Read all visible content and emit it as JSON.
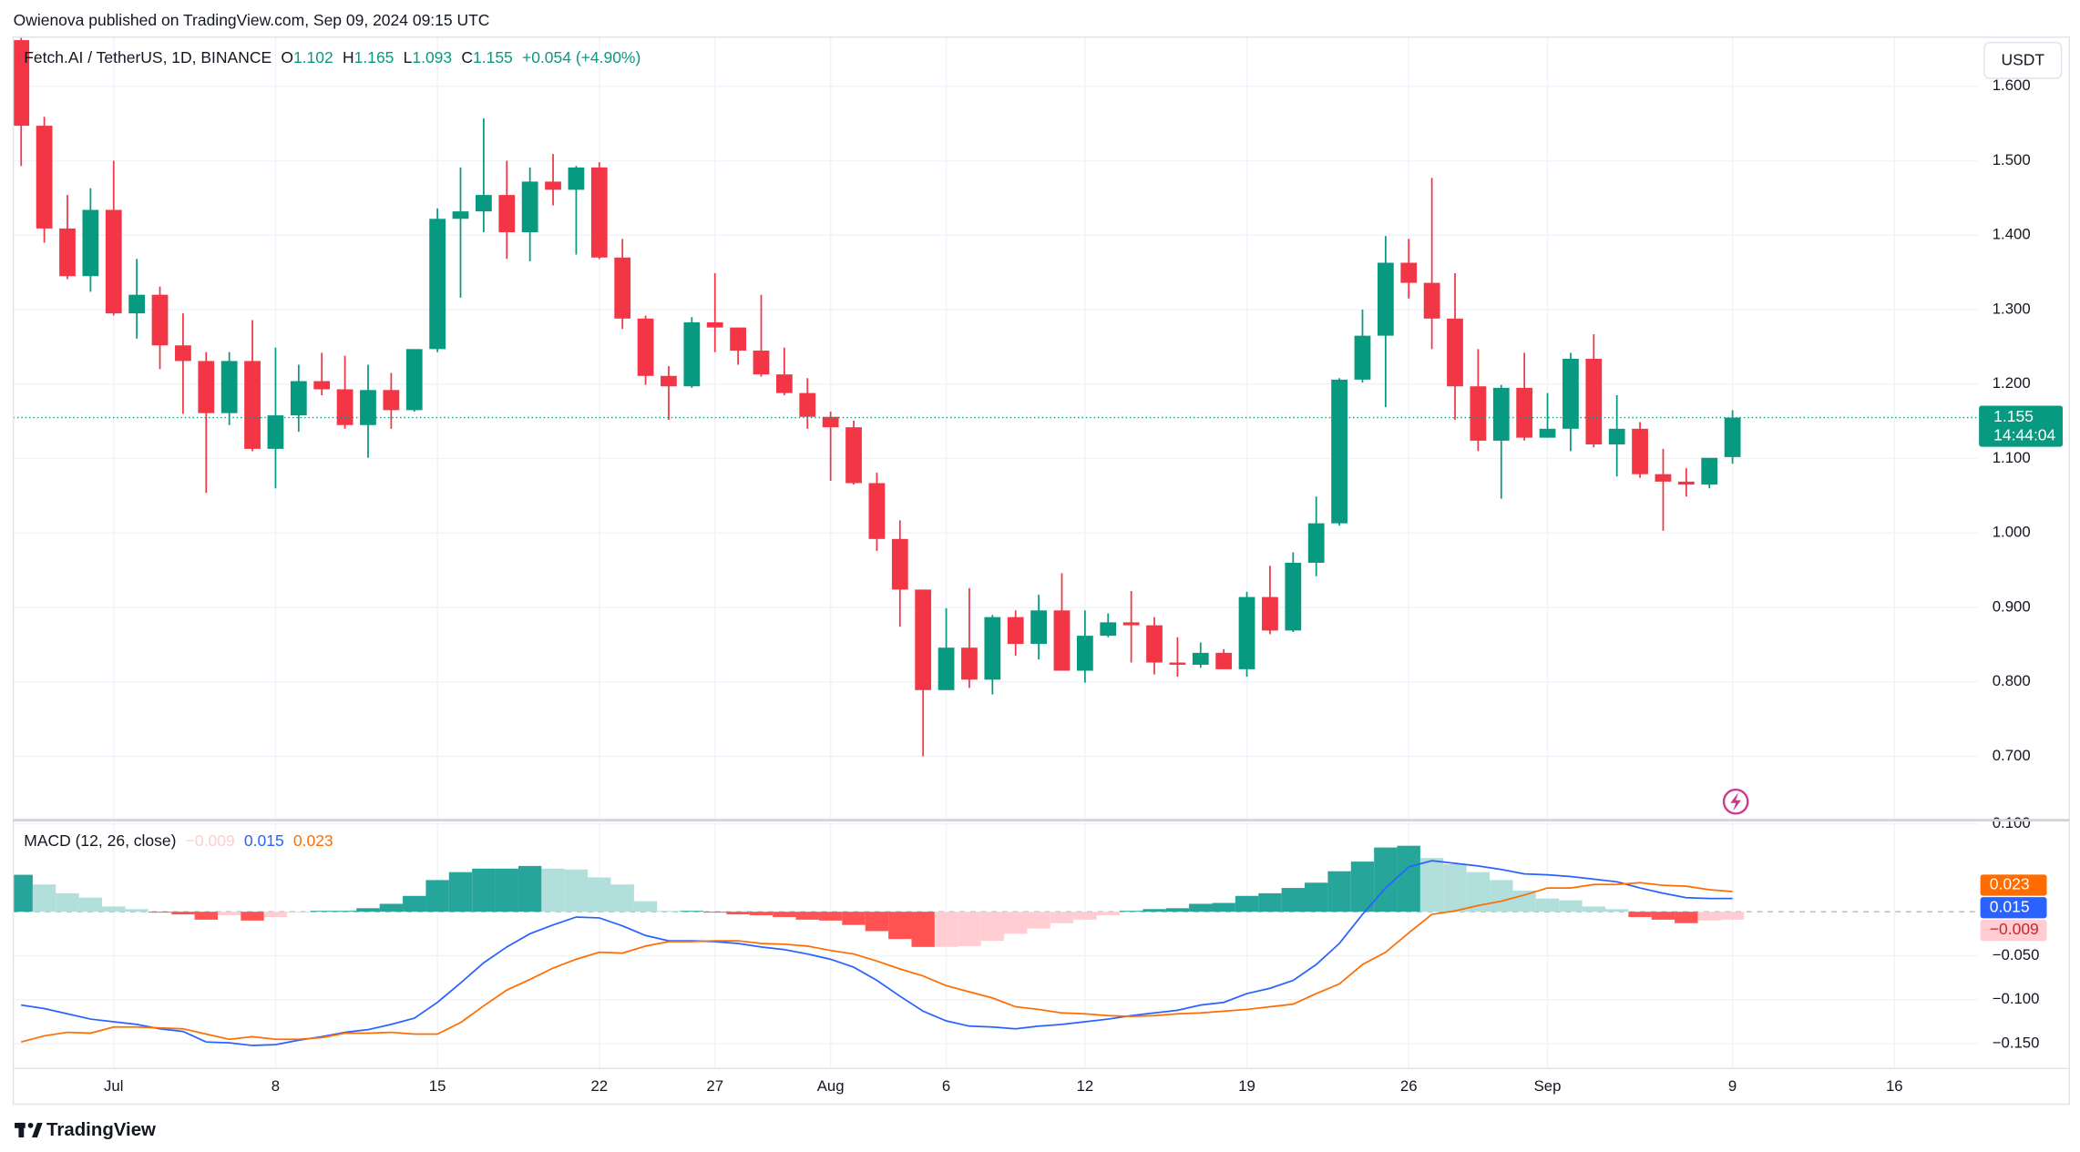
{
  "header": {
    "publisher": "Owienova published on TradingView.com, Sep 09, 2024 09:15 UTC"
  },
  "footer": {
    "brand": "TradingView"
  },
  "chart_data": {
    "type": "candlestick",
    "symbol": "Fetch.AI / TetherUS, 1D, BINANCE",
    "ohlc_legend": [
      {
        "key": "O",
        "value": "1.102"
      },
      {
        "key": "H",
        "value": "1.165"
      },
      {
        "key": "L",
        "value": "1.093"
      },
      {
        "key": "C",
        "value": "1.155"
      }
    ],
    "change": "+0.054 (+4.90%)",
    "currency": "USDT",
    "up_color": "#089981",
    "down_color": "#f23645",
    "open": [
      1.662,
      1.547,
      1.409,
      1.345,
      1.434,
      1.295,
      1.32,
      1.252,
      1.231,
      1.161,
      1.231,
      1.113,
      1.158,
      1.204,
      1.193,
      1.145,
      1.192,
      1.165,
      1.247,
      1.422,
      1.432,
      1.454,
      1.404,
      1.472,
      1.461,
      1.491,
      1.37,
      1.288,
      1.211,
      1.197,
      1.283,
      1.276,
      1.245,
      1.213,
      1.188,
      1.156,
      1.142,
      1.067,
      0.992,
      0.924,
      0.789,
      0.846,
      0.803,
      0.887,
      0.851,
      0.896,
      0.815,
      0.862,
      0.88,
      0.876,
      0.826,
      0.823,
      0.839,
      0.817,
      0.914,
      0.869,
      0.96,
      1.013,
      1.206,
      1.265,
      1.363,
      1.336,
      1.288,
      1.197,
      1.124,
      1.195,
      1.128,
      1.14,
      1.234,
      1.119,
      1.14,
      1.079,
      1.069,
      1.065,
      1.102
    ],
    "high": [
      1.665,
      1.559,
      1.454,
      1.463,
      1.5,
      1.368,
      1.331,
      1.295,
      1.243,
      1.243,
      1.286,
      1.249,
      1.226,
      1.242,
      1.238,
      1.226,
      1.215,
      1.247,
      1.436,
      1.491,
      1.557,
      1.5,
      1.491,
      1.509,
      1.493,
      1.498,
      1.395,
      1.292,
      1.224,
      1.29,
      1.349,
      1.276,
      1.32,
      1.249,
      1.208,
      1.163,
      1.151,
      1.081,
      1.017,
      0.924,
      0.899,
      0.926,
      0.89,
      0.896,
      0.917,
      0.946,
      0.896,
      0.892,
      0.922,
      0.887,
      0.86,
      0.853,
      0.844,
      0.921,
      0.956,
      0.974,
      1.049,
      1.208,
      1.3,
      1.399,
      1.395,
      1.477,
      1.349,
      1.247,
      1.199,
      1.242,
      1.188,
      1.242,
      1.267,
      1.185,
      1.149,
      1.113,
      1.087,
      1.1,
      1.165
    ],
    "low": [
      1.493,
      1.39,
      1.341,
      1.324,
      1.292,
      1.261,
      1.22,
      1.16,
      1.054,
      1.145,
      1.11,
      1.06,
      1.136,
      1.185,
      1.14,
      1.101,
      1.14,
      1.163,
      1.243,
      1.316,
      1.404,
      1.368,
      1.365,
      1.44,
      1.374,
      1.368,
      1.274,
      1.199,
      1.152,
      1.195,
      1.243,
      1.226,
      1.21,
      1.185,
      1.14,
      1.07,
      1.065,
      0.976,
      0.874,
      0.7,
      0.789,
      0.792,
      0.783,
      0.835,
      0.83,
      0.815,
      0.799,
      0.86,
      0.826,
      0.81,
      0.807,
      0.819,
      0.817,
      0.807,
      0.864,
      0.867,
      0.942,
      1.01,
      1.202,
      1.169,
      1.315,
      1.247,
      1.152,
      1.11,
      1.046,
      1.124,
      1.128,
      1.11,
      1.115,
      1.076,
      1.074,
      1.003,
      1.049,
      1.06,
      1.093
    ],
    "close": [
      1.547,
      1.409,
      1.345,
      1.434,
      1.295,
      1.32,
      1.252,
      1.231,
      1.161,
      1.231,
      1.113,
      1.158,
      1.204,
      1.193,
      1.145,
      1.192,
      1.165,
      1.247,
      1.422,
      1.432,
      1.454,
      1.404,
      1.472,
      1.461,
      1.491,
      1.37,
      1.288,
      1.211,
      1.197,
      1.283,
      1.276,
      1.245,
      1.213,
      1.188,
      1.156,
      1.142,
      1.067,
      0.992,
      0.924,
      0.789,
      0.846,
      0.803,
      0.887,
      0.851,
      0.896,
      0.815,
      0.862,
      0.88,
      0.876,
      0.826,
      0.823,
      0.839,
      0.817,
      0.914,
      0.869,
      0.96,
      1.013,
      1.206,
      1.265,
      1.363,
      1.336,
      1.288,
      1.197,
      1.124,
      1.195,
      1.128,
      1.14,
      1.234,
      1.119,
      1.14,
      1.079,
      1.069,
      1.065,
      1.101,
      1.155
    ],
    "xlim": [
      -0.34,
      84.6
    ],
    "xticks": [
      {
        "value": 4,
        "label": "Jul"
      },
      {
        "value": 11,
        "label": "8"
      },
      {
        "value": 18,
        "label": "15"
      },
      {
        "value": 25,
        "label": "22"
      },
      {
        "value": 30,
        "label": "27"
      },
      {
        "value": 35,
        "label": "Aug"
      },
      {
        "value": 40,
        "label": "6"
      },
      {
        "value": 46,
        "label": "12"
      },
      {
        "value": 53,
        "label": "19"
      },
      {
        "value": 60,
        "label": "26"
      },
      {
        "value": 66,
        "label": "Sep"
      },
      {
        "value": 74,
        "label": "9"
      },
      {
        "value": 81,
        "label": "16"
      }
    ],
    "ylim": [
      0.616,
      1.666
    ],
    "yticks": [
      {
        "value": 0.7,
        "label": "0.700"
      },
      {
        "value": 0.8,
        "label": "0.800"
      },
      {
        "value": 0.9,
        "label": "0.900"
      },
      {
        "value": 1.0,
        "label": "1.000"
      },
      {
        "value": 1.1,
        "label": "1.100"
      },
      {
        "value": 1.2,
        "label": "1.200"
      },
      {
        "value": 1.3,
        "label": "1.300"
      },
      {
        "value": 1.4,
        "label": "1.400"
      },
      {
        "value": 1.5,
        "label": "1.500"
      },
      {
        "value": 1.6,
        "label": "1.600"
      }
    ],
    "grid": true,
    "last_price": {
      "value": 1.155,
      "label": "1.155",
      "countdown": "14:44:04"
    },
    "macd": {
      "title": "MACD (12, 26, close)",
      "legend": {
        "histogram": "−0.009",
        "macd": "0.015",
        "signal": "0.023"
      },
      "macd_color": "#2962ff",
      "signal_color": "#ff6d00",
      "histogram_colors": [
        "#26a69a",
        "#b2dfdb",
        "#ffcdd2",
        "#ff5252"
      ],
      "histogram": [
        0.042,
        0.031,
        0.021,
        0.016,
        0.006,
        0.003,
        -0.001,
        -0.003,
        -0.009,
        -0.004,
        -0.01,
        -0.006,
        -0.001,
        0.001,
        0.001,
        0.004,
        0.009,
        0.018,
        0.036,
        0.045,
        0.049,
        0.049,
        0.052,
        0.049,
        0.048,
        0.039,
        0.031,
        0.012,
        0.001,
        0.001,
        -0.001,
        -0.003,
        -0.004,
        -0.006,
        -0.009,
        -0.01,
        -0.015,
        -0.022,
        -0.031,
        -0.04,
        -0.04,
        -0.039,
        -0.033,
        -0.025,
        -0.019,
        -0.013,
        -0.009,
        -0.004,
        0.001,
        0.003,
        0.004,
        0.009,
        0.01,
        0.018,
        0.021,
        0.027,
        0.033,
        0.046,
        0.057,
        0.073,
        0.075,
        0.061,
        0.054,
        0.045,
        0.036,
        0.024,
        0.015,
        0.013,
        0.006,
        0.003,
        -0.006,
        -0.009,
        -0.013,
        -0.01,
        -0.009
      ],
      "macd": [
        -0.106,
        -0.11,
        -0.116,
        -0.122,
        -0.125,
        -0.128,
        -0.133,
        -0.136,
        -0.148,
        -0.149,
        -0.152,
        -0.151,
        -0.146,
        -0.142,
        -0.137,
        -0.134,
        -0.128,
        -0.121,
        -0.103,
        -0.081,
        -0.058,
        -0.04,
        -0.025,
        -0.015,
        -0.006,
        -0.007,
        -0.016,
        -0.027,
        -0.033,
        -0.033,
        -0.034,
        -0.036,
        -0.04,
        -0.043,
        -0.048,
        -0.054,
        -0.063,
        -0.078,
        -0.096,
        -0.113,
        -0.124,
        -0.13,
        -0.131,
        -0.133,
        -0.13,
        -0.128,
        -0.125,
        -0.122,
        -0.118,
        -0.115,
        -0.112,
        -0.106,
        -0.103,
        -0.093,
        -0.087,
        -0.078,
        -0.06,
        -0.036,
        -0.003,
        0.027,
        0.051,
        0.058,
        0.055,
        0.052,
        0.048,
        0.043,
        0.042,
        0.04,
        0.037,
        0.034,
        0.027,
        0.021,
        0.016,
        0.015,
        0.015
      ],
      "signal": [
        -0.148,
        -0.141,
        -0.137,
        -0.138,
        -0.131,
        -0.131,
        -0.132,
        -0.133,
        -0.139,
        -0.145,
        -0.142,
        -0.145,
        -0.145,
        -0.143,
        -0.138,
        -0.138,
        -0.137,
        -0.139,
        -0.139,
        -0.126,
        -0.107,
        -0.089,
        -0.077,
        -0.064,
        -0.054,
        -0.046,
        -0.047,
        -0.039,
        -0.034,
        -0.034,
        -0.033,
        -0.033,
        -0.036,
        -0.037,
        -0.039,
        -0.044,
        -0.048,
        -0.056,
        -0.065,
        -0.073,
        -0.084,
        -0.091,
        -0.098,
        -0.108,
        -0.111,
        -0.115,
        -0.116,
        -0.118,
        -0.119,
        -0.118,
        -0.116,
        -0.115,
        -0.113,
        -0.111,
        -0.108,
        -0.105,
        -0.093,
        -0.082,
        -0.06,
        -0.046,
        -0.024,
        -0.003,
        0.001,
        0.007,
        0.012,
        0.019,
        0.027,
        0.027,
        0.031,
        0.031,
        0.033,
        0.03,
        0.029,
        0.025,
        0.023
      ],
      "ylim": [
        -0.178,
        0.101
      ],
      "yticks": [
        {
          "value": 0.1,
          "label": "0.100"
        },
        {
          "value": -0.05,
          "label": "−0.050"
        },
        {
          "value": -0.1,
          "label": "−0.100"
        },
        {
          "value": -0.15,
          "label": "−0.150"
        }
      ]
    }
  }
}
